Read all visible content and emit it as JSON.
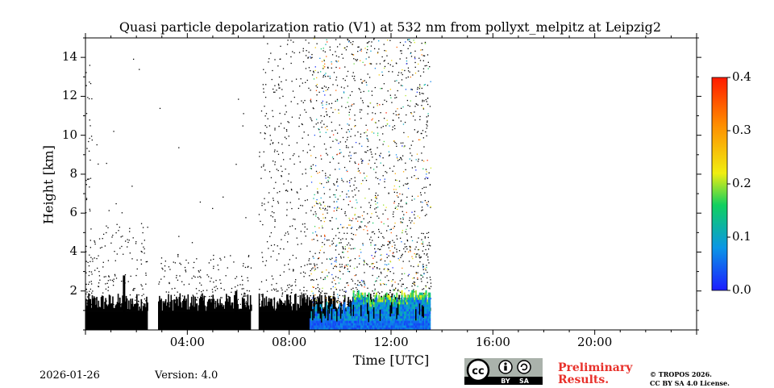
{
  "chart_data": {
    "type": "heatmap",
    "title": "Quasi particle depolarization ratio (V1) at 532 nm from pollyxt_melpitz at Leipzig2",
    "xlabel": "Time [UTC]",
    "ylabel": "Height [km]",
    "xlim_hours": [
      0,
      24
    ],
    "ylim_km": [
      0,
      15
    ],
    "x_ticks": [
      {
        "hour": 4,
        "label": "04:00"
      },
      {
        "hour": 8,
        "label": "08:00"
      },
      {
        "hour": 12,
        "label": "12:00"
      },
      {
        "hour": 16,
        "label": "16:00"
      },
      {
        "hour": 20,
        "label": "20:00"
      }
    ],
    "y_ticks": [
      {
        "value": 2,
        "label": "2"
      },
      {
        "value": 4,
        "label": "4"
      },
      {
        "value": 6,
        "label": "6"
      },
      {
        "value": 8,
        "label": "8"
      },
      {
        "value": 10,
        "label": "10"
      },
      {
        "value": 12,
        "label": "12"
      },
      {
        "value": 14,
        "label": "14"
      }
    ],
    "colorbar": {
      "range": [
        0.0,
        0.4
      ],
      "ticks": [
        {
          "value": 0.0,
          "label": "0.0"
        },
        {
          "value": 0.1,
          "label": "0.1"
        },
        {
          "value": 0.2,
          "label": "0.2"
        },
        {
          "value": 0.3,
          "label": "0.3"
        },
        {
          "value": 0.4,
          "label": "0.4"
        }
      ],
      "colors": [
        "#1c1cff",
        "#0a96e6",
        "#10d060",
        "#f0ee10",
        "#ff8c00",
        "#ff1a00"
      ]
    },
    "measurement_periods_hours": [
      [
        0.0,
        2.45
      ],
      [
        2.85,
        6.5
      ],
      [
        6.8,
        13.55
      ]
    ],
    "dense_layer_top_km": 1.3,
    "colored_region": {
      "start_hour": 8.8,
      "end_hour": 13.55,
      "typical_height_km": [
        0.0,
        2.0
      ]
    }
  },
  "footer": {
    "date": "2026-01-26",
    "version": "Version: 4.0",
    "preliminary_line1": "Preliminary",
    "preliminary_line2": "Results.",
    "copyright_line1": "© TROPOS 2026.",
    "copyright_line2": "CC BY SA 4.0 License.",
    "license_badge": {
      "cc": "cc",
      "by": "BY",
      "sa": "SA"
    }
  }
}
